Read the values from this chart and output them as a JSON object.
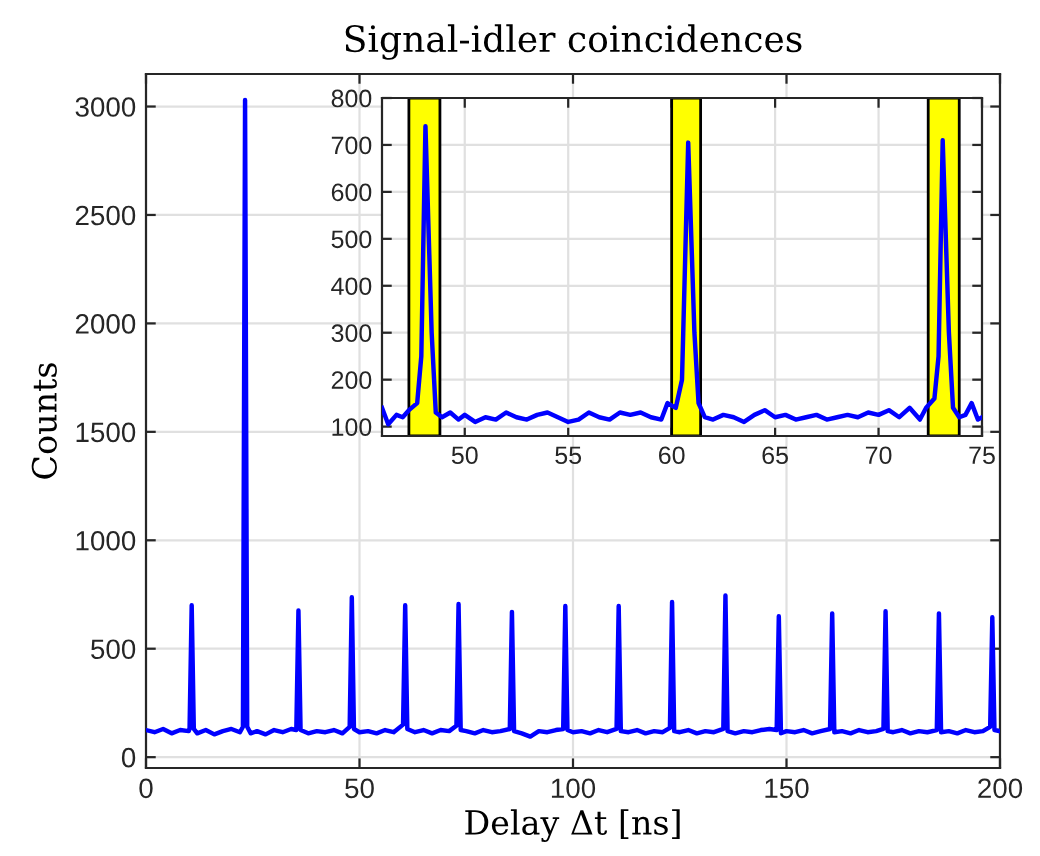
{
  "chart_data": [
    {
      "type": "line",
      "title": "Signal-idler coincidences",
      "xlabel": "Delay Δt [ns]",
      "ylabel": "Counts",
      "xlim": [
        0,
        200
      ],
      "ylim": [
        -50,
        3150
      ],
      "xticks": [
        0,
        50,
        100,
        150,
        200
      ],
      "yticks": [
        0,
        500,
        1000,
        1500,
        2000,
        2500,
        3000
      ],
      "grid": true,
      "series": [
        {
          "color": "#0000ff",
          "x": [
            0,
            2,
            4,
            6,
            8,
            10,
            10.2,
            10.7,
            11.2,
            12,
            14,
            16,
            18,
            20,
            22,
            22.7,
            23.2,
            23.7,
            24.5,
            26,
            28,
            30,
            32,
            34,
            35.2,
            35.7,
            36.2,
            38,
            40,
            42,
            44,
            46,
            47.7,
            48.2,
            48.7,
            50,
            52,
            54,
            56,
            58,
            60.2,
            60.7,
            61.2,
            63,
            65,
            67,
            69,
            71,
            72.7,
            73.2,
            73.7,
            75,
            77,
            79,
            81,
            83,
            85.2,
            85.7,
            86.2,
            88,
            90,
            92,
            94,
            96,
            97.7,
            98.2,
            98.7,
            100,
            102,
            104,
            106,
            108,
            110.2,
            110.7,
            111.2,
            113,
            115,
            117,
            119,
            121,
            122.7,
            123.2,
            123.7,
            125,
            127,
            129,
            131,
            133,
            135.2,
            135.7,
            136.2,
            138,
            140,
            142,
            144,
            146,
            147.7,
            148.2,
            148.7,
            150,
            152,
            154,
            156,
            158,
            160.2,
            160.7,
            161.2,
            163,
            165,
            167,
            169,
            171,
            172.7,
            173.2,
            173.7,
            175,
            177,
            179,
            181,
            183,
            185.2,
            185.7,
            186.2,
            188,
            190,
            192,
            194,
            196,
            197.7,
            198.2,
            198.7,
            200
          ],
          "values": [
            125,
            115,
            130,
            110,
            125,
            120,
            130,
            700,
            130,
            110,
            125,
            105,
            120,
            130,
            115,
            140,
            3030,
            140,
            110,
            120,
            105,
            125,
            115,
            130,
            125,
            676,
            125,
            110,
            120,
            115,
            125,
            110,
            140,
            737,
            130,
            115,
            120,
            110,
            125,
            115,
            150,
            700,
            130,
            115,
            125,
            110,
            125,
            120,
            145,
            706,
            125,
            120,
            110,
            125,
            115,
            120,
            130,
            670,
            120,
            110,
            95,
            120,
            115,
            125,
            130,
            697,
            125,
            115,
            120,
            110,
            125,
            115,
            130,
            697,
            120,
            115,
            125,
            110,
            120,
            115,
            135,
            715,
            120,
            115,
            125,
            110,
            120,
            115,
            130,
            745,
            120,
            110,
            120,
            115,
            125,
            130,
            125,
            650,
            110,
            120,
            115,
            125,
            110,
            120,
            130,
            663,
            115,
            120,
            110,
            125,
            115,
            120,
            130,
            673,
            120,
            115,
            125,
            110,
            120,
            115,
            125,
            663,
            115,
            120,
            110,
            125,
            115,
            120,
            140,
            645,
            125,
            120
          ]
        }
      ]
    },
    {
      "type": "line",
      "xlim": [
        46,
        75
      ],
      "ylim": [
        80,
        800
      ],
      "xticks": [
        50,
        55,
        60,
        65,
        70,
        75
      ],
      "yticks": [
        100,
        200,
        300,
        400,
        500,
        600,
        700,
        800
      ],
      "grid": true,
      "bands": [
        {
          "axis": "x",
          "from": 47.3,
          "to": 48.8,
          "color": "#ffff00"
        },
        {
          "axis": "x",
          "from": 60,
          "to": 61.4,
          "color": "#ffff00"
        },
        {
          "axis": "x",
          "from": 72.4,
          "to": 73.9,
          "color": "#ffff00"
        }
      ],
      "series": [
        {
          "color": "#0000ff",
          "x": [
            46,
            46.3,
            46.7,
            47,
            47.3,
            47.7,
            47.9,
            48.1,
            48.4,
            48.6,
            48.9,
            49.3,
            49.7,
            50,
            50.5,
            51,
            51.5,
            52,
            52.5,
            53,
            53.5,
            54,
            54.5,
            55,
            55.5,
            56,
            56.5,
            57,
            57.5,
            58,
            58.5,
            59,
            59.5,
            59.8,
            60.2,
            60.5,
            60.8,
            61.1,
            61.3,
            61.6,
            62,
            62.5,
            63,
            63.5,
            64,
            64.5,
            65,
            65.5,
            66,
            66.5,
            67,
            67.5,
            68,
            68.5,
            69,
            69.5,
            70,
            70.5,
            71,
            71.5,
            72,
            72.3,
            72.7,
            72.9,
            73.1,
            73.4,
            73.6,
            73.9,
            74.2,
            74.5,
            74.8,
            75
          ],
          "values": [
            140,
            105,
            125,
            120,
            135,
            150,
            250,
            740,
            300,
            130,
            120,
            130,
            115,
            125,
            110,
            120,
            115,
            130,
            120,
            115,
            125,
            130,
            120,
            110,
            115,
            130,
            120,
            115,
            130,
            125,
            130,
            120,
            115,
            150,
            140,
            200,
            705,
            300,
            150,
            120,
            115,
            125,
            120,
            110,
            125,
            135,
            120,
            125,
            115,
            120,
            125,
            115,
            120,
            125,
            120,
            130,
            125,
            135,
            120,
            140,
            115,
            140,
            160,
            250,
            710,
            300,
            140,
            120,
            125,
            150,
            115,
            120
          ]
        }
      ]
    }
  ]
}
